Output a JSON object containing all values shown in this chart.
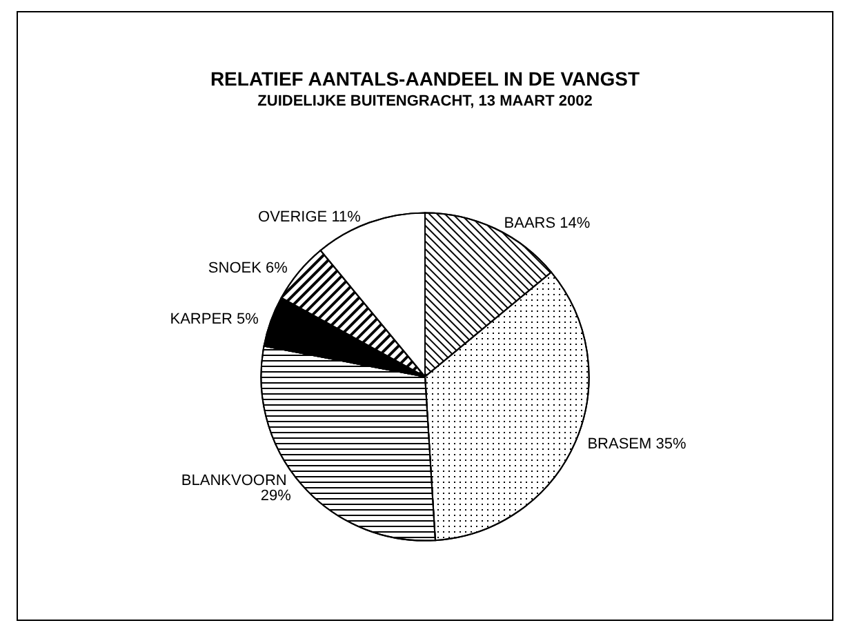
{
  "chart_data": {
    "type": "pie",
    "title": "RELATIEF AANTALS-AANDEEL IN DE VANGST",
    "subtitle": "ZUIDELIJKE BUITENGRACHT, 13 MAART 2002",
    "categories": [
      "BAARS",
      "BRASEM",
      "BLANKVOORN",
      "KARPER",
      "SNOEK",
      "OVERIGE"
    ],
    "values": [
      14,
      35,
      29,
      5,
      6,
      11
    ],
    "colors": [
      "#ffffff",
      "#ffffff",
      "#ffffff",
      "#000000",
      "#ffffff",
      "#ffffff"
    ],
    "value_labels": [
      "14%",
      "35%",
      "29%",
      "5%",
      "6%",
      "11%"
    ],
    "legend": false
  }
}
